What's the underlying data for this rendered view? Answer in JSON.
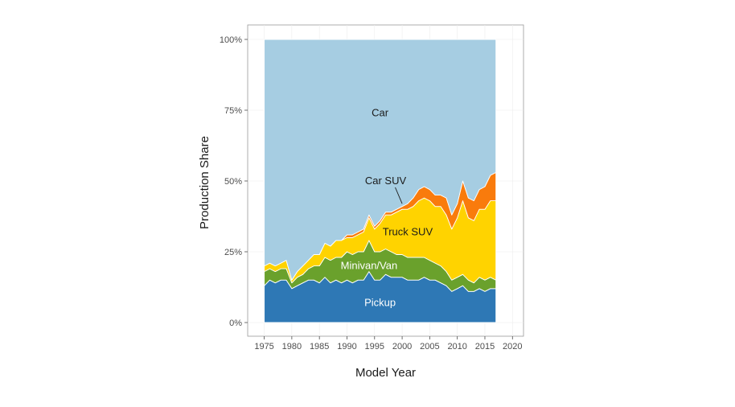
{
  "chart_data": {
    "type": "area",
    "stacked": true,
    "normalized": true,
    "xlabel": "Model Year",
    "ylabel": "Production Share",
    "xlim": [
      1972,
      2022
    ],
    "ylim": [
      0,
      100
    ],
    "x_ticks": [
      "1975",
      "1980",
      "1985",
      "1990",
      "1995",
      "2000",
      "2005",
      "2010",
      "2015",
      "2020"
    ],
    "y_ticks": [
      "0%",
      "25%",
      "50%",
      "75%",
      "100%"
    ],
    "grid": true,
    "legend": "none",
    "x": [
      1975,
      1976,
      1977,
      1978,
      1979,
      1980,
      1981,
      1982,
      1983,
      1984,
      1985,
      1986,
      1987,
      1988,
      1989,
      1990,
      1991,
      1992,
      1993,
      1994,
      1995,
      1996,
      1997,
      1998,
      1999,
      2000,
      2001,
      2002,
      2003,
      2004,
      2005,
      2006,
      2007,
      2008,
      2009,
      2010,
      2011,
      2012,
      2013,
      2014,
      2015,
      2016,
      2017
    ],
    "series": [
      {
        "name": "Pickup",
        "color": "#2e78b5",
        "values": [
          13,
          15,
          14,
          15,
          15,
          12,
          13,
          14,
          15,
          15,
          14,
          16,
          14,
          15,
          14,
          15,
          14,
          15,
          15,
          18,
          15,
          15,
          17,
          16,
          16,
          16,
          15,
          15,
          15,
          16,
          15,
          15,
          14,
          13,
          11,
          12,
          13,
          11,
          11,
          12,
          11,
          12,
          12
        ]
      },
      {
        "name": "Minivan/Van",
        "color": "#6aa12c",
        "values": [
          5,
          4,
          4,
          4,
          4,
          2,
          3,
          3,
          4,
          5,
          6,
          7,
          8,
          8,
          9,
          10,
          10,
          10,
          10,
          11,
          10,
          10,
          9,
          9,
          8,
          8,
          8,
          8,
          8,
          7,
          7,
          6,
          6,
          5,
          4,
          4,
          4,
          4,
          3,
          4,
          4,
          4,
          3
        ]
      },
      {
        "name": "Truck SUV",
        "color": "#ffd300",
        "values": [
          2,
          2,
          2,
          2,
          3,
          1,
          2,
          3,
          3,
          4,
          4,
          5,
          5,
          6,
          6,
          5,
          6,
          6,
          7,
          8,
          8,
          10,
          12,
          13,
          15,
          16,
          17,
          18,
          20,
          21,
          21,
          20,
          21,
          20,
          18,
          21,
          26,
          22,
          22,
          24,
          25,
          27,
          28
        ]
      },
      {
        "name": "Car SUV",
        "color": "#f97b0c",
        "values": [
          0,
          0,
          0,
          0,
          0,
          0,
          0,
          0,
          0,
          0,
          0,
          0,
          0,
          0,
          0,
          1,
          1,
          1,
          1,
          1,
          1,
          1,
          1,
          1,
          1,
          1,
          2,
          3,
          4,
          4,
          4,
          4,
          4,
          6,
          5,
          5,
          7,
          7,
          7,
          7,
          8,
          9,
          10
        ]
      },
      {
        "name": "Car",
        "color": "#a6cde2",
        "values": [
          80,
          79,
          80,
          79,
          78,
          85,
          82,
          80,
          78,
          76,
          76,
          72,
          73,
          71,
          71,
          69,
          69,
          68,
          67,
          62,
          66,
          64,
          61,
          61,
          60,
          59,
          58,
          56,
          53,
          52,
          53,
          55,
          55,
          56,
          62,
          58,
          50,
          56,
          57,
          53,
          52,
          48,
          47
        ]
      }
    ],
    "annotations": [
      {
        "text": "Car",
        "series": "Car",
        "x": 1996,
        "y": 74
      },
      {
        "text": "Car SUV",
        "series": "Car SUV",
        "x": 1997,
        "y": 50,
        "arrow_to": [
          2000,
          42
        ]
      },
      {
        "text": "Truck SUV",
        "series": "Truck SUV",
        "x": 2001,
        "y": 32
      },
      {
        "text": "Minivan/Van",
        "series": "Minivan/Van",
        "x": 1994,
        "y": 20
      },
      {
        "text": "Pickup",
        "series": "Pickup",
        "x": 1996,
        "y": 7
      }
    ]
  }
}
